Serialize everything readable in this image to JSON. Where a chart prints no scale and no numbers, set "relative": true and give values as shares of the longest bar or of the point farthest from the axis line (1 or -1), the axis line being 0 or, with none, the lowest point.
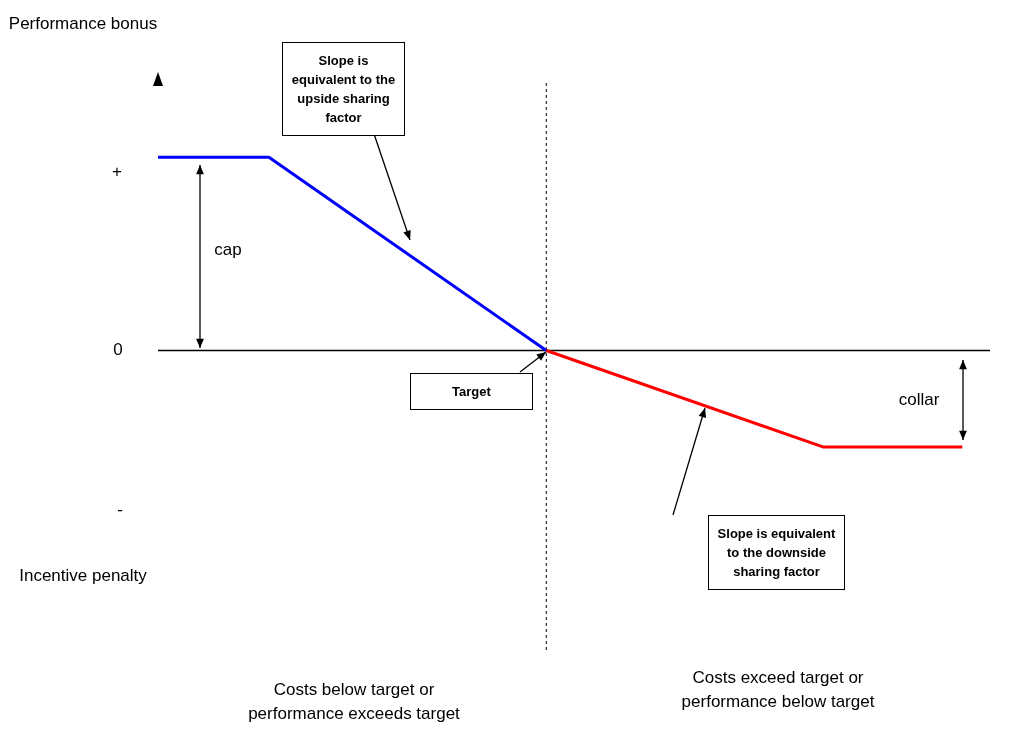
{
  "chart_data": {
    "type": "line",
    "relative": true,
    "categories": [
      null,
      null,
      null,
      null,
      null,
      null,
      null,
      null,
      null,
      null,
      null,
      null,
      null,
      null,
      null,
      null,
      null,
      null,
      null,
      null,
      null,
      null,
      null,
      null,
      null,
      null,
      null,
      null,
      null,
      null,
      null
    ],
    "series": [
      {
        "color": "#0000ff",
        "values": [
          1,
          null,
          null,
          null,
          1,
          null,
          null,
          null,
          null,
          null,
          null,
          null,
          null,
          null,
          0,
          null,
          null,
          null,
          null,
          null,
          null,
          null,
          null,
          null,
          null,
          null,
          null,
          null,
          null,
          null,
          null
        ]
      },
      {
        "color": "#ff0000",
        "values": [
          null,
          null,
          null,
          null,
          null,
          null,
          null,
          null,
          null,
          null,
          null,
          null,
          null,
          null,
          0,
          null,
          null,
          null,
          null,
          null,
          null,
          null,
          null,
          null,
          -0.5,
          null,
          null,
          null,
          null,
          -0.5,
          null
        ]
      }
    ],
    "ref_lines": [
      {
        "axis": "x",
        "line_style": "dotted",
        "color": "#000000"
      }
    ],
    "annotations": [
      "Slope is equivalent to the upside sharing factor",
      "Target",
      "Slope is equivalent to the downside sharing factor",
      "cap",
      "collar",
      "Costs below target or performance exceeds target",
      "Costs exceed target or performance below target",
      "Performance bonus",
      "+",
      "0",
      "-",
      "Incentive penalty"
    ]
  }
}
